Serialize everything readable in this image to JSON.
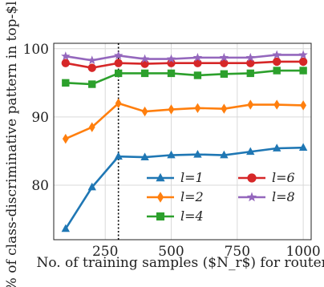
{
  "chart_data": {
    "type": "line",
    "xlabel": "No. of training samples ($N_r$) for routers",
    "ylabel": "% of class-discriminative pattern in top-$l$",
    "xlim": [
      55,
      1030
    ],
    "ylim": [
      72,
      100.8
    ],
    "xticks": [
      250,
      500,
      750,
      1000
    ],
    "yticks": [
      80,
      90,
      100
    ],
    "xtick_labels": [
      "250",
      "500",
      "750",
      "1000"
    ],
    "ytick_labels": [
      "80",
      "90",
      "100"
    ],
    "x": [
      100,
      200,
      300,
      400,
      500,
      600,
      700,
      800,
      900,
      1000
    ],
    "vline_x": 300,
    "grid": true,
    "legend_position": "lower-right",
    "series": [
      {
        "name": "l=1",
        "color": "#1f77b4",
        "marker": "triangle",
        "values": [
          73.6,
          79.7,
          84.2,
          84.1,
          84.4,
          84.5,
          84.4,
          84.9,
          85.4,
          85.5
        ]
      },
      {
        "name": "l=2",
        "color": "#ff7f0e",
        "marker": "diamond",
        "values": [
          86.8,
          88.5,
          92.0,
          90.8,
          91.1,
          91.3,
          91.2,
          91.8,
          91.8,
          91.7
        ]
      },
      {
        "name": "l=4",
        "color": "#2ca02c",
        "marker": "square",
        "values": [
          95.0,
          94.8,
          96.4,
          96.4,
          96.4,
          96.1,
          96.3,
          96.4,
          96.8,
          96.8
        ]
      },
      {
        "name": "l=6",
        "color": "#d62728",
        "marker": "circle",
        "values": [
          97.9,
          97.2,
          97.9,
          97.8,
          97.9,
          97.9,
          97.9,
          97.9,
          98.1,
          98.1
        ]
      },
      {
        "name": "l=8",
        "color": "#9467bd",
        "marker": "star",
        "values": [
          98.9,
          98.3,
          99.0,
          98.5,
          98.5,
          98.7,
          98.7,
          98.7,
          99.1,
          99.1
        ]
      }
    ]
  }
}
